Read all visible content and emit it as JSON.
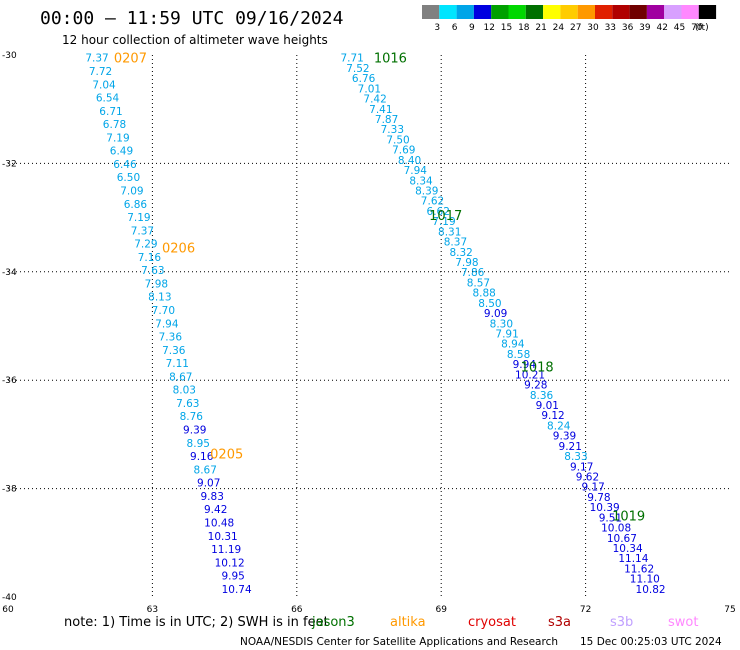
{
  "header": {
    "title": "00:00 — 11:59 UTC 09/16/2024",
    "subtitle": "12 hour collection of altimeter wave heights"
  },
  "colorbar": {
    "unit": "(ft)",
    "bins": [
      {
        "color": "#808080",
        "label": "3"
      },
      {
        "color": "#00e5ff",
        "label": "6"
      },
      {
        "color": "#00a5e8",
        "label": "9"
      },
      {
        "color": "#0000e0",
        "label": "12"
      },
      {
        "color": "#00a000",
        "label": "15"
      },
      {
        "color": "#00d800",
        "label": "18"
      },
      {
        "color": "#007000",
        "label": "21"
      },
      {
        "color": "#ffff00",
        "label": "24"
      },
      {
        "color": "#ffcc00",
        "label": "27"
      },
      {
        "color": "#ff9900",
        "label": "30"
      },
      {
        "color": "#e02000",
        "label": "33"
      },
      {
        "color": "#b00000",
        "label": "36"
      },
      {
        "color": "#700000",
        "label": "39"
      },
      {
        "color": "#a000a0",
        "label": "42"
      },
      {
        "color": "#d8a0ff",
        "label": "45"
      },
      {
        "color": "#ff88ff",
        "label": "70"
      },
      {
        "color": "#000000",
        "label": ""
      }
    ]
  },
  "map": {
    "x_range": [
      60,
      75
    ],
    "y_range": [
      -40,
      -30
    ],
    "x_ticks": [
      "60",
      "63",
      "66",
      "69",
      "72",
      "75"
    ],
    "y_ticks": [
      "-30",
      "-32",
      "-34",
      "-36",
      "-38",
      "-40"
    ],
    "gridlines": true,
    "color_light": "#00a5e8",
    "color_dark": "#0000e0",
    "track_labels": [
      {
        "text": "0207",
        "color": "#ff9900",
        "lon": 62.2,
        "lat": -30.05
      },
      {
        "text": "0206",
        "color": "#ff9900",
        "lon": 63.2,
        "lat": -33.55
      },
      {
        "text": "0205",
        "color": "#ff9900",
        "lon": 64.2,
        "lat": -37.35
      },
      {
        "text": "1016",
        "color": "#007000",
        "lon": 67.6,
        "lat": -30.05
      },
      {
        "text": "1017",
        "color": "#007000",
        "lon": 68.75,
        "lat": -32.95
      },
      {
        "text": "1018",
        "color": "#007000",
        "lon": 70.65,
        "lat": -35.75
      },
      {
        "text": "1019",
        "color": "#007000",
        "lon": 72.55,
        "lat": -38.5
      }
    ],
    "track_a": {
      "lon_start": 61.85,
      "lat_start": -30.05,
      "lon_end": 64.75,
      "lat_end": -39.85,
      "values": [
        "7.37",
        "7.72",
        "7.04",
        "6.54",
        "6.71",
        "6.78",
        "7.19",
        "6.49",
        "6.46",
        "6.50",
        "7.09",
        "6.86",
        "7.19",
        "7.37",
        "7.29",
        "7.16",
        "7.63",
        "7.98",
        "8.13",
        "7.70",
        "7.94",
        "7.36",
        "7.36",
        "7.11",
        "8.67",
        "8.03",
        "7.63",
        "8.76",
        "9.39",
        "8.95",
        "9.16",
        "8.67",
        "9.07",
        "9.83",
        "9.42",
        "10.48",
        "10.31",
        "11.19",
        "10.12",
        "9.95",
        "10.74"
      ],
      "dark": [
        false,
        false,
        false,
        false,
        false,
        false,
        false,
        false,
        false,
        false,
        false,
        false,
        false,
        false,
        false,
        false,
        false,
        false,
        false,
        false,
        false,
        false,
        false,
        false,
        false,
        false,
        false,
        false,
        true,
        false,
        true,
        false,
        true,
        true,
        true,
        true,
        true,
        true,
        true,
        true,
        true
      ]
    },
    "track_b": {
      "lon_start": 67.15,
      "lat_start": -30.05,
      "lon_end": 73.35,
      "lat_end": -39.85,
      "values": [
        "7.71",
        "7.52",
        "6.76",
        "7.01",
        "7.42",
        "7.41",
        "7.87",
        "7.33",
        "7.50",
        "7.69",
        "8.40",
        "7.94",
        "8.34",
        "8.39",
        "7.62",
        "6.62",
        "7.19",
        "8.31",
        "8.37",
        "8.32",
        "7.98",
        "7.86",
        "8.57",
        "8.88",
        "8.50",
        "9.09",
        "8.30",
        "7.91",
        "8.94",
        "8.58",
        "9.94",
        "10.21",
        "9.28",
        "8.36",
        "9.01",
        "9.12",
        "8.24",
        "9.39",
        "9.21",
        "8.33",
        "9.17",
        "9.62",
        "9.17",
        "9.78",
        "10.39",
        "9.51",
        "10.08",
        "10.67",
        "10.34",
        "11.14",
        "11.62",
        "11.10",
        "10.82"
      ],
      "dark": [
        false,
        false,
        false,
        false,
        false,
        false,
        false,
        false,
        false,
        false,
        false,
        false,
        false,
        false,
        false,
        false,
        false,
        false,
        false,
        false,
        false,
        false,
        false,
        false,
        false,
        true,
        false,
        false,
        false,
        false,
        true,
        true,
        true,
        false,
        true,
        true,
        false,
        true,
        true,
        false,
        true,
        true,
        true,
        true,
        true,
        true,
        true,
        true,
        true,
        true,
        true,
        true,
        true
      ]
    }
  },
  "footer": {
    "note_prefix": "note:  1) Time is in UTC;  2) SWH is in feet",
    "satellites": [
      {
        "name": "jason3",
        "color": "#007000"
      },
      {
        "name": "altika",
        "color": "#ff9900"
      },
      {
        "name": "cryosat",
        "color": "#e00000"
      },
      {
        "name": "s3a",
        "color": "#b00000"
      },
      {
        "name": "s3b",
        "color": "#c0a0ff"
      },
      {
        "name": "swot",
        "color": "#ff88ff"
      }
    ],
    "credit": "NOAA/NESDIS Center for Satellite Applications and Research",
    "timestamp": "15 Dec 00:25:03 UTC 2024"
  }
}
